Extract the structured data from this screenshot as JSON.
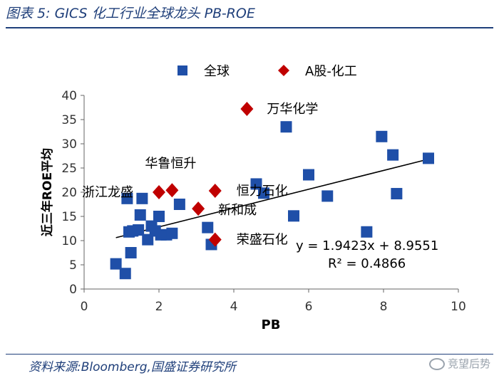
{
  "figure_title": "图表 5:  GICS 化工行业全球龙头 PB-ROE",
  "source_note": "资料来源:Bloomberg,国盛证券研究所",
  "watermark": "竞望后势",
  "colors": {
    "global": "#1f4fa8",
    "a_share": "#c00000",
    "heading": "#1f3f7a",
    "axis": "#666666"
  },
  "chart_data": {
    "type": "scatter",
    "xlabel": "PB",
    "ylabel": "近三年ROE平均",
    "xlim": [
      0,
      10
    ],
    "ylim": [
      0,
      40
    ],
    "xticks": [
      0,
      2,
      4,
      6,
      8,
      10
    ],
    "yticks": [
      0,
      5,
      10,
      15,
      20,
      25,
      30,
      35,
      40
    ],
    "legend_position": "top",
    "series": [
      {
        "name": "全球",
        "marker": "square",
        "points": [
          [
            0.85,
            5.2
          ],
          [
            1.1,
            3.2
          ],
          [
            1.15,
            18.7
          ],
          [
            1.2,
            11.8
          ],
          [
            1.25,
            7.5
          ],
          [
            1.3,
            12.0
          ],
          [
            1.45,
            12.2
          ],
          [
            1.5,
            15.3
          ],
          [
            1.55,
            18.7
          ],
          [
            1.7,
            10.2
          ],
          [
            1.8,
            13.0
          ],
          [
            1.9,
            12.0
          ],
          [
            2.0,
            15.0
          ],
          [
            2.05,
            11.2
          ],
          [
            2.2,
            11.2
          ],
          [
            2.35,
            11.5
          ],
          [
            2.55,
            17.5
          ],
          [
            3.3,
            12.7
          ],
          [
            3.4,
            9.2
          ],
          [
            4.6,
            21.7
          ],
          [
            4.8,
            19.8
          ],
          [
            5.4,
            33.5
          ],
          [
            5.6,
            15.1
          ],
          [
            6.0,
            23.6
          ],
          [
            6.5,
            19.2
          ],
          [
            7.55,
            11.8
          ],
          [
            7.95,
            31.5
          ],
          [
            8.25,
            27.7
          ],
          [
            8.35,
            19.7
          ],
          [
            9.2,
            27.0
          ]
        ]
      },
      {
        "name": "A股-化工",
        "marker": "diamond",
        "points": [
          {
            "x": 4.35,
            "y": 37.2,
            "label": "万华化学"
          },
          {
            "x": 2.35,
            "y": 20.4,
            "label": "华鲁恒升"
          },
          {
            "x": 2.0,
            "y": 20.0,
            "label": "浙江龙盛"
          },
          {
            "x": 3.5,
            "y": 20.3,
            "label": "恒力石化"
          },
          {
            "x": 3.05,
            "y": 16.6,
            "label": "新和成"
          },
          {
            "x": 3.5,
            "y": 10.2,
            "label": "荣盛石化"
          }
        ]
      }
    ],
    "trendline": {
      "x_range": [
        0.85,
        9.2
      ],
      "slope": 1.9423,
      "intercept": 8.9551,
      "equation": "y = 1.9423x + 8.9551",
      "r_squared": "R² = 0.4866"
    }
  }
}
